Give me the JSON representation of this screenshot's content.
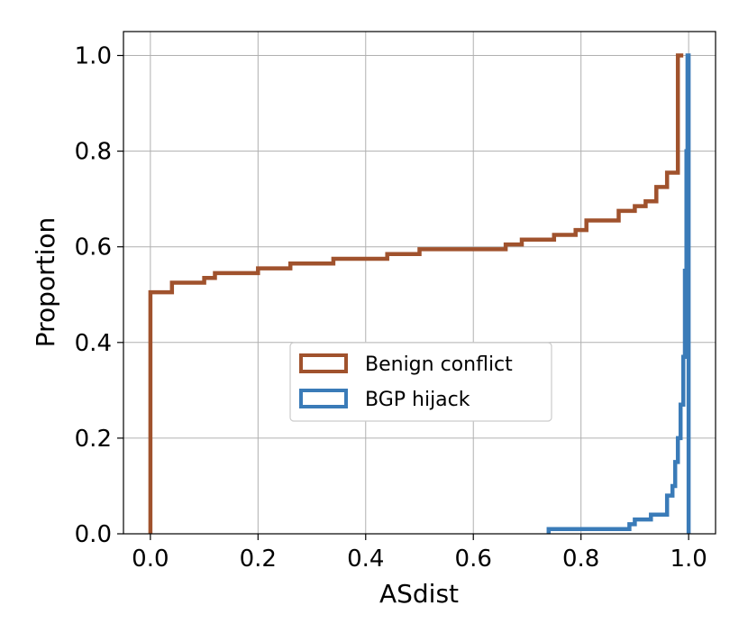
{
  "chart_data": {
    "type": "step",
    "xlabel": "ASdist",
    "ylabel": "Proportion",
    "xlim": [
      -0.05,
      1.05
    ],
    "ylim": [
      0,
      1.05
    ],
    "xticks": [
      "0.0",
      "0.2",
      "0.4",
      "0.6",
      "0.8",
      "1.0"
    ],
    "yticks": [
      "0.0",
      "0.2",
      "0.4",
      "0.6",
      "0.8",
      "1.0"
    ],
    "grid": true,
    "legend_position": "center",
    "series": [
      {
        "name": "Benign conflict",
        "color": "#a0522d",
        "points": [
          [
            0.0,
            0.0
          ],
          [
            0.0,
            0.505
          ],
          [
            0.04,
            0.505
          ],
          [
            0.04,
            0.525
          ],
          [
            0.1,
            0.525
          ],
          [
            0.1,
            0.535
          ],
          [
            0.12,
            0.535
          ],
          [
            0.12,
            0.545
          ],
          [
            0.2,
            0.545
          ],
          [
            0.2,
            0.555
          ],
          [
            0.26,
            0.555
          ],
          [
            0.26,
            0.565
          ],
          [
            0.34,
            0.565
          ],
          [
            0.34,
            0.575
          ],
          [
            0.44,
            0.575
          ],
          [
            0.44,
            0.585
          ],
          [
            0.5,
            0.585
          ],
          [
            0.5,
            0.595
          ],
          [
            0.66,
            0.595
          ],
          [
            0.66,
            0.605
          ],
          [
            0.69,
            0.605
          ],
          [
            0.69,
            0.615
          ],
          [
            0.75,
            0.615
          ],
          [
            0.75,
            0.625
          ],
          [
            0.79,
            0.625
          ],
          [
            0.79,
            0.635
          ],
          [
            0.81,
            0.635
          ],
          [
            0.81,
            0.655
          ],
          [
            0.87,
            0.655
          ],
          [
            0.87,
            0.675
          ],
          [
            0.9,
            0.675
          ],
          [
            0.9,
            0.685
          ],
          [
            0.92,
            0.685
          ],
          [
            0.92,
            0.695
          ],
          [
            0.94,
            0.695
          ],
          [
            0.94,
            0.725
          ],
          [
            0.96,
            0.725
          ],
          [
            0.96,
            0.755
          ],
          [
            0.98,
            0.755
          ],
          [
            0.98,
            1.0
          ],
          [
            0.99,
            1.0
          ]
        ]
      },
      {
        "name": "BGP hijack",
        "color": "#3a7bb8",
        "points": [
          [
            0.74,
            0.0
          ],
          [
            0.74,
            0.01
          ],
          [
            0.89,
            0.01
          ],
          [
            0.89,
            0.02
          ],
          [
            0.9,
            0.02
          ],
          [
            0.9,
            0.03
          ],
          [
            0.93,
            0.03
          ],
          [
            0.93,
            0.04
          ],
          [
            0.96,
            0.04
          ],
          [
            0.96,
            0.08
          ],
          [
            0.97,
            0.08
          ],
          [
            0.97,
            0.1
          ],
          [
            0.975,
            0.1
          ],
          [
            0.975,
            0.15
          ],
          [
            0.98,
            0.15
          ],
          [
            0.98,
            0.2
          ],
          [
            0.985,
            0.2
          ],
          [
            0.985,
            0.27
          ],
          [
            0.99,
            0.27
          ],
          [
            0.99,
            0.37
          ],
          [
            0.993,
            0.37
          ],
          [
            0.993,
            0.55
          ],
          [
            0.996,
            0.55
          ],
          [
            0.996,
            0.8
          ],
          [
            0.998,
            0.8
          ],
          [
            0.998,
            1.0
          ],
          [
            1.0,
            1.0
          ],
          [
            1.0,
            0.0
          ]
        ]
      }
    ]
  }
}
